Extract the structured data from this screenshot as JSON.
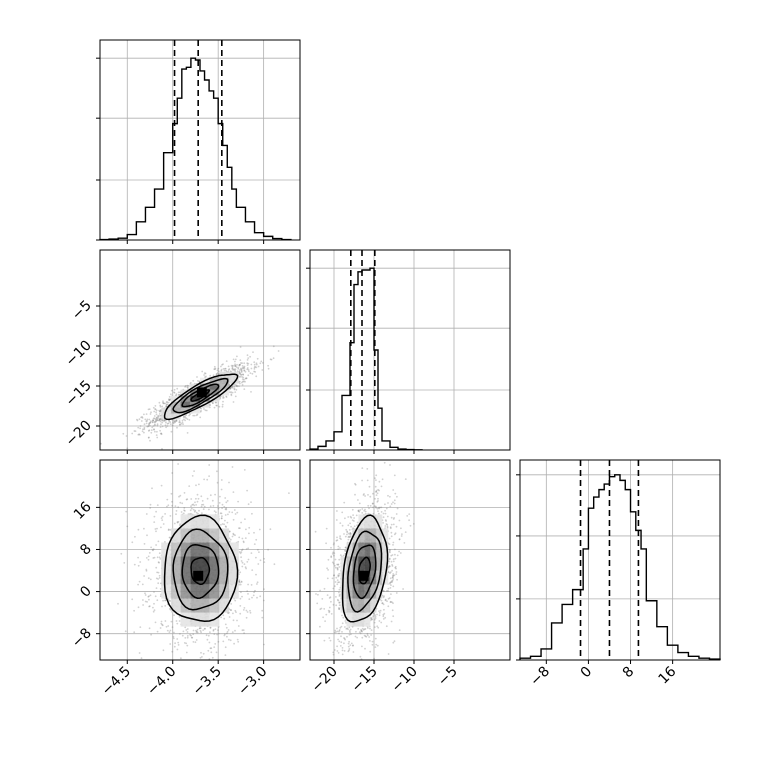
{
  "chart_data": {
    "type": "corner",
    "parameters": [
      "",
      "",
      ""
    ],
    "grid": true,
    "quantiles": [
      0.16,
      0.5,
      0.84
    ],
    "variables": [
      {
        "range": [
          -4.8,
          -2.6
        ],
        "ticks": [
          -4.5,
          -4.0,
          -3.5,
          -3.0
        ],
        "tick_labels": [
          "−4.5",
          "−4.0",
          "−3.5",
          "−3.0"
        ],
        "quantile_values": [
          -3.98,
          -3.72,
          -3.46
        ],
        "hist_bins": [
          -4.8,
          -4.7,
          -4.6,
          -4.5,
          -4.4,
          -4.3,
          -4.2,
          -4.1,
          -4.0,
          -3.95,
          -3.9,
          -3.85,
          -3.8,
          -3.75,
          -3.7,
          -3.65,
          -3.6,
          -3.55,
          -3.5,
          -3.45,
          -3.4,
          -3.35,
          -3.3,
          -3.2,
          -3.1,
          -3.0,
          -2.9,
          -2.8,
          -2.7
        ],
        "hist_counts": [
          0.002,
          0.005,
          0.01,
          0.03,
          0.1,
          0.18,
          0.28,
          0.48,
          0.64,
          0.78,
          0.94,
          0.95,
          1.0,
          0.99,
          0.93,
          0.88,
          0.82,
          0.78,
          0.64,
          0.52,
          0.4,
          0.28,
          0.18,
          0.1,
          0.04,
          0.02,
          0.008,
          0.002
        ],
        "hist_ymax": 1.1,
        "hist_yticks": [
          0.0,
          0.33,
          0.67,
          1.0
        ]
      },
      {
        "range": [
          -23,
          2
        ],
        "ticks": [
          -20,
          -15,
          -10,
          -5
        ],
        "tick_labels": [
          "−20",
          "−15",
          "−10",
          "−5"
        ],
        "quantile_values": [
          -17.9,
          -16.5,
          -14.9
        ],
        "hist_bins": [
          -23,
          -22,
          -21,
          -20,
          -19,
          -18,
          -17.5,
          -17,
          -16.5,
          -16,
          -15.5,
          -15,
          -14.5,
          -14,
          -13,
          -12,
          -11,
          -10,
          -9
        ],
        "hist_counts": [
          0.005,
          0.02,
          0.05,
          0.1,
          0.3,
          0.59,
          0.91,
          0.98,
          0.99,
          0.99,
          1.0,
          0.55,
          0.23,
          0.05,
          0.015,
          0.005,
          0.002,
          0.001
        ],
        "hist_ymax": 1.1,
        "hist_yticks": [
          0.0,
          0.33,
          0.67,
          1.0
        ]
      },
      {
        "range": [
          -13,
          25
        ],
        "ticks": [
          -8,
          0,
          8,
          16
        ],
        "tick_labels": [
          "−8",
          "0",
          "8",
          "16"
        ],
        "quantile_values": [
          -1.5,
          4.0,
          9.5
        ],
        "hist_bins": [
          -13,
          -11,
          -9,
          -7,
          -5,
          -3,
          -1,
          0,
          1,
          2,
          3,
          4,
          5,
          6,
          7,
          8,
          9,
          10,
          11,
          13,
          15,
          17,
          19,
          21,
          23,
          25
        ],
        "hist_counts": [
          0.01,
          0.02,
          0.06,
          0.2,
          0.3,
          0.38,
          0.6,
          0.82,
          0.88,
          0.92,
          0.95,
          0.99,
          1.0,
          0.97,
          0.92,
          0.8,
          0.7,
          0.6,
          0.32,
          0.18,
          0.08,
          0.04,
          0.02,
          0.01,
          0.005
        ],
        "hist_ymax": 1.08,
        "hist_yticks": [
          0.0,
          0.33,
          0.67,
          1.0
        ]
      }
    ],
    "scatter_panels": [
      {
        "x_var": 0,
        "y_var": 1,
        "mean": [
          -3.7,
          -16.2
        ],
        "std": [
          0.2,
          1.4
        ],
        "correlation": 0.85,
        "n_points": 1800,
        "density_peak": [
          -3.68,
          -15.8
        ],
        "contour_levels_sigma": [
          0.5,
          1.0,
          1.5,
          2.0
        ]
      },
      {
        "x_var": 0,
        "y_var": 2,
        "mean": [
          -3.7,
          4.0
        ],
        "std": [
          0.2,
          5.0
        ],
        "correlation": 0.0,
        "n_points": 1800,
        "density_peak": [
          -3.72,
          3.0
        ],
        "contour_levels_sigma": [
          0.5,
          1.0,
          1.5,
          2.0
        ]
      },
      {
        "x_var": 1,
        "y_var": 2,
        "mean": [
          -16.2,
          4.0
        ],
        "std": [
          1.4,
          5.0
        ],
        "correlation": 0.3,
        "n_points": 1800,
        "density_peak": [
          -16.3,
          3.0
        ],
        "contour_levels_sigma": [
          0.5,
          1.0,
          1.5,
          2.0
        ]
      }
    ]
  }
}
